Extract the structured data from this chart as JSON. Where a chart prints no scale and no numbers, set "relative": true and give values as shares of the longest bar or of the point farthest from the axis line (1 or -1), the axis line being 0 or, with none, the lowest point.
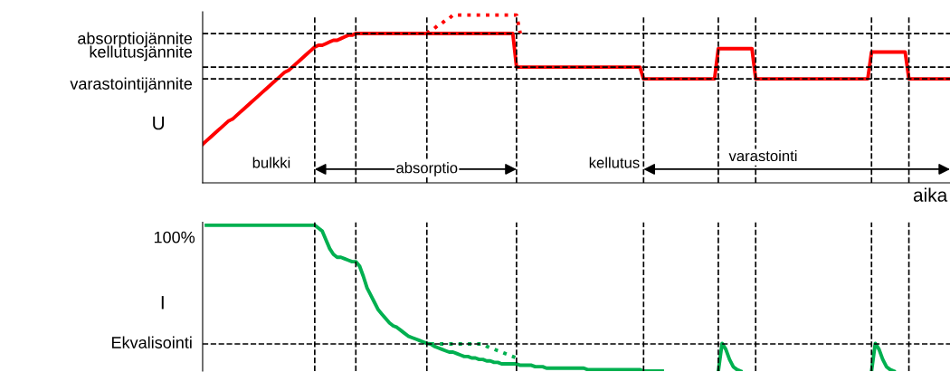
{
  "chart_data": [
    {
      "type": "line",
      "relative": true,
      "ylabel": "U",
      "xlabel": "aika",
      "tick_labels": false,
      "categories": [
        null,
        null,
        null,
        null,
        null,
        null,
        null,
        null,
        null,
        null,
        null,
        null,
        null,
        null,
        null,
        null,
        null,
        null,
        null,
        null,
        null,
        null,
        null,
        null,
        null,
        null,
        null,
        null,
        null,
        null,
        null,
        null,
        null,
        null,
        null,
        null,
        null,
        null,
        null,
        null,
        null,
        null,
        null,
        null,
        null,
        null,
        null,
        null,
        null,
        null,
        null,
        null,
        null,
        null,
        null,
        null,
        null,
        null,
        null,
        null,
        null,
        null,
        null,
        null,
        null,
        null,
        null,
        null,
        null,
        null,
        null,
        null,
        null,
        null,
        null,
        null,
        null,
        null,
        null,
        null,
        null,
        null,
        null,
        null,
        null,
        null,
        null,
        null,
        null,
        null,
        null,
        null,
        null,
        null,
        null,
        null,
        null,
        null,
        null,
        null,
        null,
        null,
        null,
        null,
        null,
        null,
        null,
        null,
        null,
        null,
        null,
        null,
        null,
        null,
        null,
        null,
        null,
        null,
        null,
        null,
        null,
        null,
        null,
        null,
        null,
        null,
        null,
        null,
        null,
        null,
        null,
        null,
        null,
        null,
        null,
        null,
        null,
        null,
        null,
        null,
        null,
        null,
        null,
        null,
        null,
        null,
        null,
        null,
        null,
        null,
        null,
        null,
        null,
        null,
        null,
        null,
        null,
        null,
        null,
        null,
        null,
        null,
        null,
        null,
        null,
        null,
        null,
        null,
        null,
        null,
        null,
        null,
        null,
        null,
        null,
        null,
        null,
        null,
        null,
        null,
        null,
        null,
        null,
        null,
        null,
        null,
        null,
        null,
        null,
        null,
        null,
        null,
        null,
        null,
        null,
        null,
        null,
        null,
        null,
        null,
        null
      ],
      "series": [
        {
          "color": "#ff0000",
          "line_style": "solid",
          "values": [
            0.23,
            0.25,
            0.27,
            0.29,
            0.31,
            0.33,
            0.35,
            0.37,
            0.38,
            0.4,
            0.42,
            0.44,
            0.46,
            0.48,
            0.5,
            0.52,
            0.54,
            0.56,
            0.58,
            0.6,
            0.62,
            0.64,
            0.66,
            0.67,
            0.69,
            0.71,
            0.73,
            0.75,
            0.77,
            0.79,
            0.81,
            0.82,
            0.82,
            0.83,
            0.84,
            0.85,
            0.85,
            0.86,
            0.87,
            0.88,
            0.88,
            0.89,
            0.89,
            0.89,
            0.89,
            0.89,
            0.89,
            0.89,
            0.89,
            0.89,
            0.89,
            0.89,
            0.89,
            0.89,
            0.89,
            0.89,
            0.89,
            0.89,
            0.89,
            0.89,
            0.89,
            0.89,
            0.89,
            0.89,
            0.89,
            0.89,
            0.89,
            0.89,
            0.89,
            0.89,
            0.89,
            0.89,
            0.89,
            0.89,
            0.89,
            0.89,
            0.89,
            0.89,
            0.89,
            0.89,
            0.89,
            0.89,
            0.89,
            0.89,
            0.69,
            0.69,
            0.69,
            0.69,
            0.69,
            0.69,
            0.69,
            0.69,
            0.69,
            0.69,
            0.69,
            0.69,
            0.69,
            0.69,
            0.69,
            0.69,
            0.69,
            0.69,
            0.69,
            0.69,
            0.69,
            0.69,
            0.69,
            0.69,
            0.69,
            0.69,
            0.69,
            0.69,
            0.69,
            0.69,
            0.69,
            0.69,
            0.69,
            0.69,
            0.62,
            0.62,
            0.62,
            0.62,
            0.62,
            0.62,
            0.62,
            0.62,
            0.62,
            0.62,
            0.62,
            0.62,
            0.62,
            0.62,
            0.62,
            0.62,
            0.62,
            0.62,
            0.62,
            0.62,
            0.8,
            0.8,
            0.8,
            0.8,
            0.8,
            0.8,
            0.8,
            0.8,
            0.8,
            0.8,
            0.62,
            0.62,
            0.62,
            0.62,
            0.62,
            0.62,
            0.62,
            0.62,
            0.62,
            0.62,
            0.62,
            0.62,
            0.62,
            0.62,
            0.62,
            0.62,
            0.62,
            0.62,
            0.62,
            0.62,
            0.62,
            0.62,
            0.62,
            0.62,
            0.62,
            0.62,
            0.62,
            0.62,
            0.62,
            0.62,
            0.62,
            0.78,
            0.78,
            0.78,
            0.78,
            0.78,
            0.78,
            0.78,
            0.78,
            0.78,
            0.78,
            0.62,
            0.62,
            0.62,
            0.62,
            0.62,
            0.62,
            0.62,
            0.62,
            0.62,
            0.62,
            0.62,
            0.62
          ]
        },
        {
          "color": "#ff0000",
          "line_style": "dotted",
          "values": [
            null,
            null,
            null,
            null,
            null,
            null,
            null,
            null,
            null,
            null,
            null,
            null,
            null,
            null,
            null,
            null,
            null,
            null,
            null,
            null,
            null,
            null,
            null,
            null,
            null,
            null,
            null,
            null,
            null,
            null,
            null,
            null,
            null,
            null,
            null,
            null,
            null,
            null,
            null,
            null,
            null,
            null,
            null,
            null,
            null,
            null,
            null,
            null,
            null,
            null,
            null,
            null,
            null,
            null,
            null,
            null,
            null,
            null,
            null,
            null,
            0.89,
            0.91,
            0.92,
            0.94,
            0.95,
            0.97,
            0.98,
            1.0,
            1.0,
            1.0,
            1.0,
            1.0,
            1.0,
            1.0,
            1.0,
            1.0,
            1.0,
            1.0,
            1.0,
            1.0,
            1.0,
            1.0,
            1.0,
            1.0,
            1.0,
            0.89,
            null,
            null,
            null,
            null,
            null,
            null,
            null,
            null,
            null,
            null,
            null,
            null,
            null,
            null,
            null,
            null,
            null,
            null,
            null,
            null,
            null,
            null,
            null,
            null,
            null,
            null,
            null,
            null,
            null,
            null,
            null,
            null,
            null,
            null,
            null,
            null,
            null,
            null,
            null,
            null,
            null,
            null,
            null,
            null,
            null,
            null,
            null,
            null,
            null,
            null,
            null,
            null,
            null,
            null,
            null,
            null,
            null,
            null,
            null,
            null,
            null,
            null,
            null,
            null,
            null,
            null,
            null,
            null,
            null,
            null,
            null,
            null,
            null,
            null,
            null,
            null,
            null,
            null,
            null,
            null,
            null,
            null,
            null,
            null,
            null,
            null,
            null,
            null,
            null,
            null,
            null,
            null,
            null,
            null,
            null,
            null,
            null,
            null,
            null,
            null,
            null,
            null,
            null,
            null,
            null,
            null,
            null,
            null,
            null,
            null,
            null,
            null,
            null,
            null,
            null
          ]
        }
      ],
      "ref_lines": [
        {
          "axis": "y",
          "value": 0.89,
          "label": "absorptiojännite"
        },
        {
          "axis": "y",
          "value": 0.69,
          "label": "kellutusjännite"
        },
        {
          "axis": "y",
          "value": 0.62,
          "label": "varastointijännite"
        }
      ],
      "annotations": [
        "bulkki",
        "kellutus",
        "absorptio",
        "varastointi"
      ]
    },
    {
      "type": "line",
      "relative": true,
      "ylabel": "I",
      "tick_labels": false,
      "categories": [
        null,
        null,
        null,
        null,
        null,
        null,
        null,
        null,
        null,
        null,
        null,
        null,
        null,
        null,
        null,
        null,
        null,
        null,
        null,
        null,
        null,
        null,
        null,
        null,
        null,
        null,
        null,
        null,
        null,
        null,
        null,
        null,
        null,
        null,
        null,
        null,
        null,
        null,
        null,
        null,
        null,
        null,
        null,
        null,
        null,
        null,
        null,
        null,
        null,
        null,
        null,
        null,
        null,
        null,
        null,
        null,
        null,
        null,
        null,
        null,
        null,
        null,
        null,
        null,
        null,
        null,
        null,
        null,
        null,
        null,
        null,
        null,
        null,
        null,
        null,
        null,
        null,
        null,
        null,
        null,
        null,
        null,
        null,
        null,
        null,
        null,
        null,
        null,
        null,
        null,
        null,
        null,
        null,
        null,
        null,
        null,
        null,
        null,
        null,
        null,
        null,
        null,
        null,
        null,
        null,
        null,
        null,
        null,
        null,
        null,
        null,
        null,
        null,
        null,
        null,
        null,
        null,
        null,
        null,
        null,
        null,
        null,
        null,
        null,
        null,
        null,
        null,
        null,
        null,
        null,
        null,
        null,
        null,
        null,
        null,
        null,
        null,
        null,
        null,
        null,
        null,
        null,
        null,
        null,
        null,
        null,
        null,
        null,
        null,
        null,
        null,
        null,
        null,
        null,
        null,
        null,
        null,
        null,
        null,
        null,
        null,
        null,
        null,
        null,
        null,
        null,
        null,
        null,
        null,
        null,
        null,
        null,
        null,
        null,
        null,
        null,
        null,
        null,
        null,
        null,
        null,
        null,
        null,
        null,
        null,
        null,
        null,
        null,
        null,
        null,
        null,
        null,
        null,
        null,
        null,
        null,
        null,
        null,
        null,
        null,
        null
      ],
      "series": [
        {
          "color": "#00b050",
          "line_style": "solid",
          "values": [
            null,
            1.0,
            1.0,
            1.0,
            1.0,
            1.0,
            1.0,
            1.0,
            1.0,
            1.0,
            1.0,
            1.0,
            1.0,
            1.0,
            1.0,
            1.0,
            1.0,
            1.0,
            1.0,
            1.0,
            1.0,
            1.0,
            1.0,
            1.0,
            1.0,
            1.0,
            1.0,
            1.0,
            1.0,
            1.0,
            1.0,
            0.98,
            0.96,
            0.9,
            0.84,
            0.8,
            0.78,
            0.78,
            0.77,
            0.76,
            0.75,
            0.75,
            0.72,
            0.65,
            0.57,
            0.52,
            0.47,
            0.42,
            0.39,
            0.36,
            0.33,
            0.31,
            0.3,
            0.28,
            0.26,
            0.24,
            0.23,
            0.22,
            0.21,
            0.2,
            0.19,
            0.186,
            0.17,
            0.16,
            0.15,
            0.14,
            0.13,
            0.13,
            0.12,
            0.11,
            0.1,
            0.1,
            0.09,
            0.09,
            0.08,
            0.08,
            0.07,
            0.07,
            0.06,
            0.06,
            0.05,
            0.05,
            0.05,
            0.05,
            0.05,
            0.04,
            0.04,
            0.04,
            0.04,
            0.03,
            0.03,
            0.03,
            0.02,
            0.02,
            0.02,
            0.02,
            0.02,
            0.02,
            0.02,
            0.02,
            0.02,
            0.02,
            0.02,
            0.01,
            0.01,
            0.01,
            0.01,
            0.01,
            0.01,
            0.01,
            0.01,
            0.01,
            0.01,
            0.01,
            0.01,
            0.01,
            0.01,
            0.01,
            0.0,
            0.0,
            0.0,
            0.0,
            0.0,
            0.0,
            null,
            null,
            null,
            null,
            null,
            null,
            null,
            null,
            null,
            null,
            null,
            null,
            null,
            null,
            0.0,
            0.19,
            0.15,
            0.08,
            0.03,
            0.01,
            0.0,
            null,
            null,
            null,
            null,
            null,
            null,
            null,
            null,
            null,
            null,
            null,
            null,
            null,
            null,
            null,
            null,
            null,
            null,
            null,
            null,
            null,
            null,
            null,
            null,
            null,
            null,
            null,
            null,
            null,
            null,
            null,
            null,
            null,
            null,
            0.0,
            0.19,
            0.15,
            0.08,
            0.03,
            0.01,
            0.0,
            null,
            null,
            null,
            null,
            null,
            null,
            null,
            null,
            null,
            null,
            null,
            null,
            null,
            null,
            null
          ]
        },
        {
          "color": "#00b050",
          "line_style": "dotted",
          "values": [
            null,
            null,
            null,
            null,
            null,
            null,
            null,
            null,
            null,
            null,
            null,
            null,
            null,
            null,
            null,
            null,
            null,
            null,
            null,
            null,
            null,
            null,
            null,
            null,
            null,
            null,
            null,
            null,
            null,
            null,
            null,
            null,
            null,
            null,
            null,
            null,
            null,
            null,
            null,
            null,
            null,
            null,
            null,
            null,
            null,
            null,
            null,
            null,
            null,
            null,
            null,
            null,
            null,
            null,
            null,
            null,
            null,
            null,
            null,
            null,
            null,
            0.186,
            0.186,
            0.186,
            0.186,
            0.186,
            0.186,
            0.186,
            0.186,
            0.186,
            0.186,
            0.186,
            0.186,
            0.186,
            0.186,
            0.186,
            0.17,
            0.16,
            0.15,
            0.14,
            0.13,
            0.12,
            0.11,
            0.1,
            0.09,
            null,
            null,
            null,
            null,
            null,
            null,
            null,
            null,
            null,
            null,
            null,
            null,
            null,
            null,
            null,
            null,
            null,
            null,
            null,
            null,
            null,
            null,
            null,
            null,
            null,
            null,
            null,
            null,
            null,
            null,
            null,
            null,
            null,
            null,
            null,
            null,
            null,
            null,
            null,
            null,
            null,
            null,
            null,
            null,
            null,
            null,
            null,
            null,
            null,
            null,
            null,
            null,
            null,
            null,
            null,
            null,
            null,
            null,
            null,
            null,
            null,
            null,
            null,
            null,
            null,
            null,
            null,
            null,
            null,
            null,
            null,
            null,
            null,
            null,
            null,
            null,
            null,
            null,
            null,
            null,
            null,
            null,
            null,
            null,
            null,
            null,
            null,
            null,
            null,
            null,
            null,
            null,
            null,
            null,
            null,
            null,
            null,
            null,
            null,
            null,
            null,
            null,
            null,
            null,
            null,
            null,
            null,
            null,
            null,
            null,
            null,
            null,
            null,
            null,
            null,
            null
          ]
        }
      ],
      "ref_lines": [
        {
          "axis": "y",
          "value": 0.186,
          "label": "Ekvalisointi"
        }
      ],
      "annotations": [
        "100%"
      ]
    }
  ]
}
